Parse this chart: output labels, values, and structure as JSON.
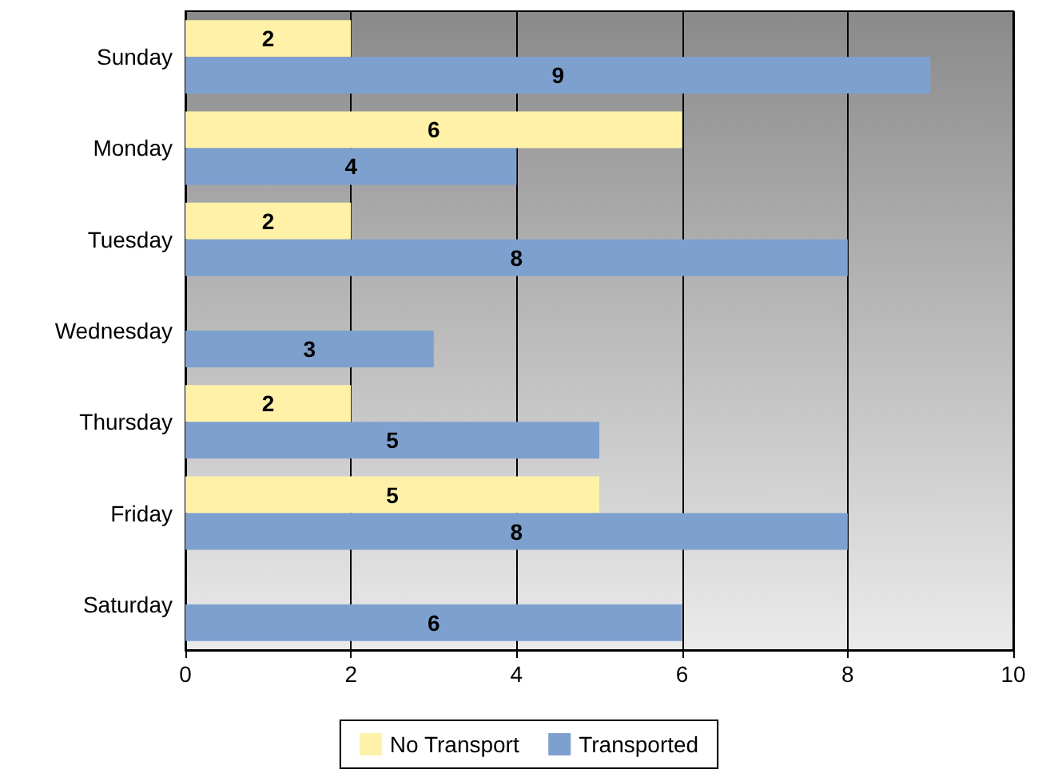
{
  "chart_data": {
    "type": "bar",
    "orientation": "horizontal",
    "categories": [
      "Sunday",
      "Monday",
      "Tuesday",
      "Wednesday",
      "Thursday",
      "Friday",
      "Saturday"
    ],
    "series": [
      {
        "name": "No Transport",
        "color": "#fff2a8",
        "values": [
          2,
          6,
          2,
          null,
          2,
          5,
          null
        ]
      },
      {
        "name": "Transported",
        "color": "#7ea0cf",
        "values": [
          9,
          4,
          8,
          3,
          5,
          8,
          6
        ]
      }
    ],
    "xlim": [
      0,
      10
    ],
    "xticks": [
      0,
      2,
      4,
      6,
      8,
      10
    ],
    "grid": "x",
    "legend": "bottom",
    "data_labels": true
  }
}
